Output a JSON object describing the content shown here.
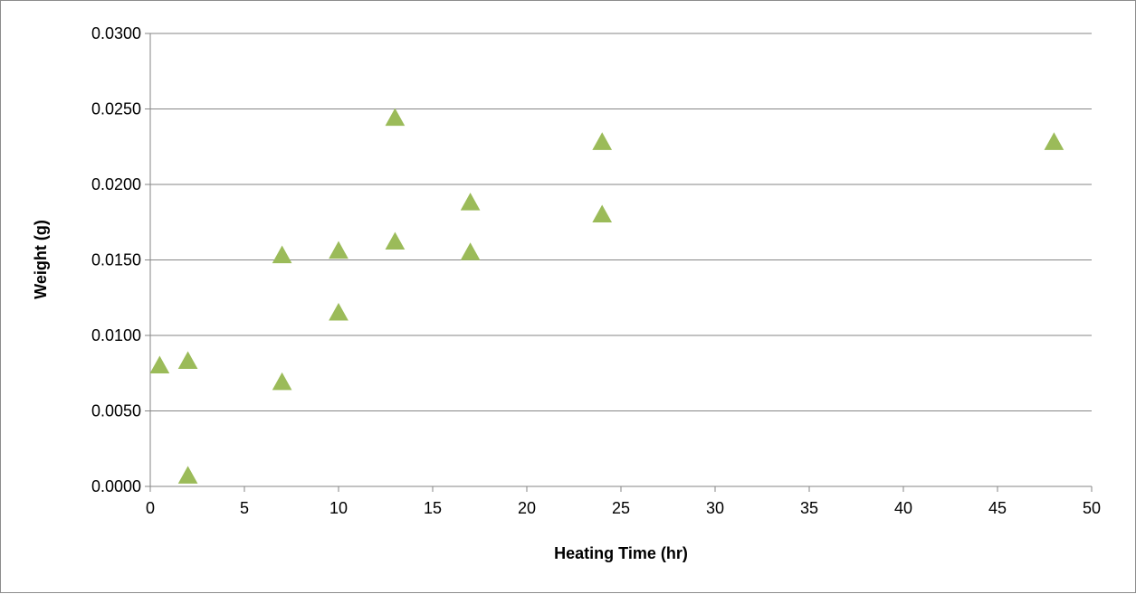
{
  "chart_data": {
    "type": "scatter",
    "title": "",
    "xlabel": "Heating Time (hr)",
    "ylabel": "Weight (g)",
    "xlim": [
      0,
      50
    ],
    "ylim": [
      0,
      0.03
    ],
    "x_ticks": [
      "0",
      "5",
      "10",
      "15",
      "20",
      "25",
      "30",
      "35",
      "40",
      "45",
      "50"
    ],
    "y_ticks": [
      "0.0000",
      "0.0050",
      "0.0100",
      "0.0150",
      "0.0200",
      "0.0250",
      "0.0300"
    ],
    "grid": "horizontal",
    "legend": "none",
    "marker": "triangle",
    "marker_color": "#9bbb59",
    "series": [
      {
        "x": [
          0.5,
          2,
          2,
          7,
          7,
          10,
          10,
          13,
          13,
          17,
          17,
          24,
          24,
          48
        ],
        "y": [
          0.008,
          0.0083,
          0.0007,
          0.0069,
          0.0153,
          0.0156,
          0.0115,
          0.0244,
          0.0162,
          0.0188,
          0.0155,
          0.0228,
          0.018,
          0.0228
        ]
      }
    ]
  }
}
